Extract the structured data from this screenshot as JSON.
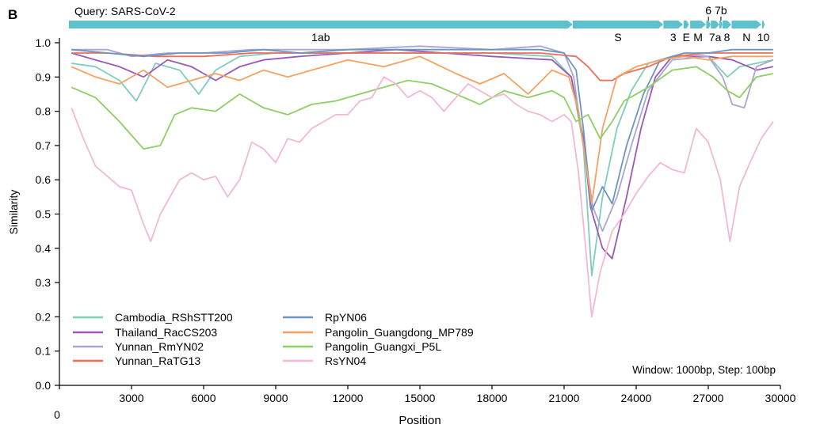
{
  "panel_letter": "B",
  "chart_data": {
    "type": "line",
    "query_label": "Query: SARS-CoV-2",
    "window_note": "Window: 1000bp, Step: 100bp",
    "xlabel": "Position",
    "ylabel": "Similarity",
    "xlim": [
      0,
      30000
    ],
    "ylim": [
      0,
      1.0
    ],
    "x_ticks": [
      0,
      3000,
      6000,
      9000,
      12000,
      15000,
      18000,
      21000,
      24000,
      27000,
      30000
    ],
    "y_ticks": [
      "0.0",
      "0.1",
      "0.2",
      "0.3",
      "0.4",
      "0.5",
      "0.6",
      "0.7",
      "0.8",
      "0.9",
      "1.0"
    ],
    "grid": false,
    "legend": "bottom-left",
    "genes": [
      {
        "label": "1ab",
        "start": 266,
        "end": 21555
      },
      {
        "label": "S",
        "start": 21563,
        "end": 25384
      },
      {
        "label": "3",
        "start": 25393,
        "end": 26220
      },
      {
        "label": "E",
        "start": 26245,
        "end": 26472
      },
      {
        "label": "M",
        "start": 26523,
        "end": 27191
      },
      {
        "label": "6",
        "start": 27202,
        "end": 27387
      },
      {
        "label": "7a",
        "start": 27394,
        "end": 27759
      },
      {
        "label": "7b",
        "start": 27756,
        "end": 27887
      },
      {
        "label": "8",
        "start": 27894,
        "end": 28259
      },
      {
        "label": "N",
        "start": 28274,
        "end": 29533
      },
      {
        "label": "10",
        "start": 29558,
        "end": 29674
      }
    ],
    "gene_color": "#5ec1cc",
    "series": [
      {
        "name": "Cambodia_RShSTT200",
        "color": "#7fcdbb",
        "points": [
          [
            500,
            0.94
          ],
          [
            1500,
            0.93
          ],
          [
            2500,
            0.89
          ],
          [
            3200,
            0.83
          ],
          [
            4000,
            0.94
          ],
          [
            5000,
            0.92
          ],
          [
            5800,
            0.85
          ],
          [
            6500,
            0.92
          ],
          [
            7500,
            0.96
          ],
          [
            9000,
            0.97
          ],
          [
            12000,
            0.97
          ],
          [
            15000,
            0.97
          ],
          [
            18000,
            0.97
          ],
          [
            20500,
            0.96
          ],
          [
            21300,
            0.9
          ],
          [
            21800,
            0.7
          ],
          [
            22150,
            0.32
          ],
          [
            22600,
            0.55
          ],
          [
            23200,
            0.75
          ],
          [
            23800,
            0.86
          ],
          [
            24500,
            0.94
          ],
          [
            25500,
            0.96
          ],
          [
            27000,
            0.96
          ],
          [
            27800,
            0.9
          ],
          [
            28300,
            0.93
          ],
          [
            29700,
            0.95
          ]
        ]
      },
      {
        "name": "Thailand_RacCS203",
        "color": "#9b59b6",
        "points": [
          [
            500,
            0.97
          ],
          [
            1500,
            0.95
          ],
          [
            2500,
            0.93
          ],
          [
            3500,
            0.9
          ],
          [
            4500,
            0.95
          ],
          [
            5500,
            0.93
          ],
          [
            6500,
            0.89
          ],
          [
            7500,
            0.93
          ],
          [
            8500,
            0.95
          ],
          [
            10000,
            0.96
          ],
          [
            12000,
            0.97
          ],
          [
            14000,
            0.98
          ],
          [
            16000,
            0.97
          ],
          [
            18000,
            0.96
          ],
          [
            20500,
            0.95
          ],
          [
            21300,
            0.9
          ],
          [
            21800,
            0.72
          ],
          [
            22100,
            0.52
          ],
          [
            22600,
            0.4
          ],
          [
            23000,
            0.37
          ],
          [
            23600,
            0.55
          ],
          [
            24200,
            0.75
          ],
          [
            24800,
            0.9
          ],
          [
            25500,
            0.96
          ],
          [
            27000,
            0.96
          ],
          [
            28000,
            0.95
          ],
          [
            29000,
            0.92
          ],
          [
            29700,
            0.93
          ]
        ]
      },
      {
        "name": "Yunnan_RmYN02",
        "color": "#a9a6d1",
        "points": [
          [
            500,
            0.98
          ],
          [
            2000,
            0.98
          ],
          [
            3000,
            0.96
          ],
          [
            4500,
            0.97
          ],
          [
            6000,
            0.97
          ],
          [
            8000,
            0.98
          ],
          [
            10000,
            0.98
          ],
          [
            12000,
            0.98
          ],
          [
            15000,
            0.99
          ],
          [
            18000,
            0.98
          ],
          [
            20000,
            0.99
          ],
          [
            21000,
            0.97
          ],
          [
            21400,
            0.9
          ],
          [
            21800,
            0.7
          ],
          [
            22200,
            0.52
          ],
          [
            22600,
            0.45
          ],
          [
            23200,
            0.55
          ],
          [
            23800,
            0.7
          ],
          [
            24500,
            0.86
          ],
          [
            25500,
            0.95
          ],
          [
            27000,
            0.96
          ],
          [
            27600,
            0.9
          ],
          [
            28000,
            0.82
          ],
          [
            28500,
            0.81
          ],
          [
            29000,
            0.93
          ],
          [
            29700,
            0.95
          ]
        ]
      },
      {
        "name": "Yunnan_RaTG13",
        "color": "#ef6c5a",
        "points": [
          [
            500,
            0.97
          ],
          [
            2000,
            0.97
          ],
          [
            4000,
            0.96
          ],
          [
            6000,
            0.96
          ],
          [
            8000,
            0.97
          ],
          [
            10000,
            0.97
          ],
          [
            12000,
            0.97
          ],
          [
            14000,
            0.97
          ],
          [
            16000,
            0.97
          ],
          [
            18000,
            0.97
          ],
          [
            20000,
            0.97
          ],
          [
            21500,
            0.96
          ],
          [
            22000,
            0.93
          ],
          [
            22500,
            0.89
          ],
          [
            23000,
            0.89
          ],
          [
            23500,
            0.91
          ],
          [
            24500,
            0.93
          ],
          [
            25500,
            0.96
          ],
          [
            27000,
            0.97
          ],
          [
            28000,
            0.97
          ],
          [
            29700,
            0.97
          ]
        ]
      },
      {
        "name": "RpYN06",
        "color": "#6b96c2",
        "points": [
          [
            500,
            0.98
          ],
          [
            2000,
            0.97
          ],
          [
            3500,
            0.96
          ],
          [
            5000,
            0.97
          ],
          [
            7000,
            0.97
          ],
          [
            8500,
            0.98
          ],
          [
            10000,
            0.97
          ],
          [
            12000,
            0.98
          ],
          [
            14000,
            0.98
          ],
          [
            16000,
            0.98
          ],
          [
            18000,
            0.98
          ],
          [
            20000,
            0.98
          ],
          [
            21000,
            0.97
          ],
          [
            21500,
            0.92
          ],
          [
            21800,
            0.75
          ],
          [
            22150,
            0.51
          ],
          [
            22600,
            0.58
          ],
          [
            23000,
            0.53
          ],
          [
            23600,
            0.7
          ],
          [
            24300,
            0.85
          ],
          [
            25000,
            0.95
          ],
          [
            26000,
            0.97
          ],
          [
            27000,
            0.97
          ],
          [
            28000,
            0.98
          ],
          [
            29700,
            0.98
          ]
        ]
      },
      {
        "name": "Pangolin_Guangdong_MP789",
        "color": "#f4a261",
        "points": [
          [
            500,
            0.93
          ],
          [
            1500,
            0.9
          ],
          [
            2500,
            0.88
          ],
          [
            3500,
            0.92
          ],
          [
            4500,
            0.87
          ],
          [
            5500,
            0.89
          ],
          [
            6500,
            0.91
          ],
          [
            7500,
            0.89
          ],
          [
            8500,
            0.92
          ],
          [
            9500,
            0.9
          ],
          [
            10500,
            0.92
          ],
          [
            12000,
            0.95
          ],
          [
            13500,
            0.93
          ],
          [
            15000,
            0.96
          ],
          [
            16500,
            0.91
          ],
          [
            17500,
            0.88
          ],
          [
            18500,
            0.91
          ],
          [
            19500,
            0.85
          ],
          [
            20500,
            0.92
          ],
          [
            21200,
            0.9
          ],
          [
            21600,
            0.8
          ],
          [
            21900,
            0.65
          ],
          [
            22150,
            0.53
          ],
          [
            22600,
            0.75
          ],
          [
            23200,
            0.9
          ],
          [
            24000,
            0.93
          ],
          [
            25000,
            0.95
          ],
          [
            26000,
            0.96
          ],
          [
            27000,
            0.95
          ],
          [
            28000,
            0.96
          ],
          [
            29700,
            0.96
          ]
        ]
      },
      {
        "name": "Pangolin_Guangxi_P5L",
        "color": "#8fce62",
        "points": [
          [
            500,
            0.87
          ],
          [
            1500,
            0.84
          ],
          [
            2500,
            0.77
          ],
          [
            3500,
            0.69
          ],
          [
            4200,
            0.7
          ],
          [
            4800,
            0.79
          ],
          [
            5500,
            0.81
          ],
          [
            6500,
            0.8
          ],
          [
            7500,
            0.85
          ],
          [
            8500,
            0.81
          ],
          [
            9500,
            0.79
          ],
          [
            10500,
            0.82
          ],
          [
            11500,
            0.83
          ],
          [
            12500,
            0.85
          ],
          [
            13500,
            0.87
          ],
          [
            14500,
            0.89
          ],
          [
            15500,
            0.88
          ],
          [
            16500,
            0.85
          ],
          [
            17500,
            0.82
          ],
          [
            18500,
            0.86
          ],
          [
            19500,
            0.84
          ],
          [
            20500,
            0.86
          ],
          [
            21000,
            0.84
          ],
          [
            21500,
            0.77
          ],
          [
            22000,
            0.79
          ],
          [
            22500,
            0.72
          ],
          [
            23000,
            0.77
          ],
          [
            23500,
            0.83
          ],
          [
            24500,
            0.87
          ],
          [
            25500,
            0.92
          ],
          [
            26500,
            0.93
          ],
          [
            27200,
            0.9
          ],
          [
            27800,
            0.86
          ],
          [
            28300,
            0.84
          ],
          [
            29000,
            0.9
          ],
          [
            29700,
            0.91
          ]
        ]
      },
      {
        "name": "RsYN04",
        "color": "#f4b8d4",
        "points": [
          [
            500,
            0.81
          ],
          [
            1000,
            0.72
          ],
          [
            1500,
            0.64
          ],
          [
            2000,
            0.61
          ],
          [
            2500,
            0.58
          ],
          [
            3000,
            0.57
          ],
          [
            3500,
            0.47
          ],
          [
            3800,
            0.42
          ],
          [
            4200,
            0.5
          ],
          [
            5000,
            0.6
          ],
          [
            5500,
            0.62
          ],
          [
            6000,
            0.6
          ],
          [
            6500,
            0.61
          ],
          [
            7000,
            0.55
          ],
          [
            7500,
            0.6
          ],
          [
            8000,
            0.71
          ],
          [
            8500,
            0.69
          ],
          [
            9000,
            0.65
          ],
          [
            9500,
            0.72
          ],
          [
            10000,
            0.71
          ],
          [
            10500,
            0.75
          ],
          [
            11000,
            0.77
          ],
          [
            11500,
            0.79
          ],
          [
            12000,
            0.79
          ],
          [
            12500,
            0.83
          ],
          [
            13000,
            0.84
          ],
          [
            13500,
            0.9
          ],
          [
            14000,
            0.88
          ],
          [
            14500,
            0.84
          ],
          [
            15000,
            0.86
          ],
          [
            15500,
            0.84
          ],
          [
            16000,
            0.8
          ],
          [
            16500,
            0.84
          ],
          [
            17000,
            0.88
          ],
          [
            17500,
            0.86
          ],
          [
            18000,
            0.84
          ],
          [
            18500,
            0.85
          ],
          [
            19000,
            0.82
          ],
          [
            19500,
            0.8
          ],
          [
            20000,
            0.79
          ],
          [
            20500,
            0.77
          ],
          [
            21000,
            0.79
          ],
          [
            21300,
            0.77
          ],
          [
            21600,
            0.62
          ],
          [
            21900,
            0.4
          ],
          [
            22150,
            0.2
          ],
          [
            22500,
            0.33
          ],
          [
            23000,
            0.45
          ],
          [
            23500,
            0.5
          ],
          [
            24000,
            0.56
          ],
          [
            24500,
            0.61
          ],
          [
            25000,
            0.65
          ],
          [
            25500,
            0.63
          ],
          [
            26000,
            0.62
          ],
          [
            26500,
            0.75
          ],
          [
            27000,
            0.71
          ],
          [
            27500,
            0.6
          ],
          [
            27900,
            0.42
          ],
          [
            28300,
            0.58
          ],
          [
            28800,
            0.66
          ],
          [
            29200,
            0.72
          ],
          [
            29700,
            0.77
          ]
        ]
      }
    ]
  }
}
